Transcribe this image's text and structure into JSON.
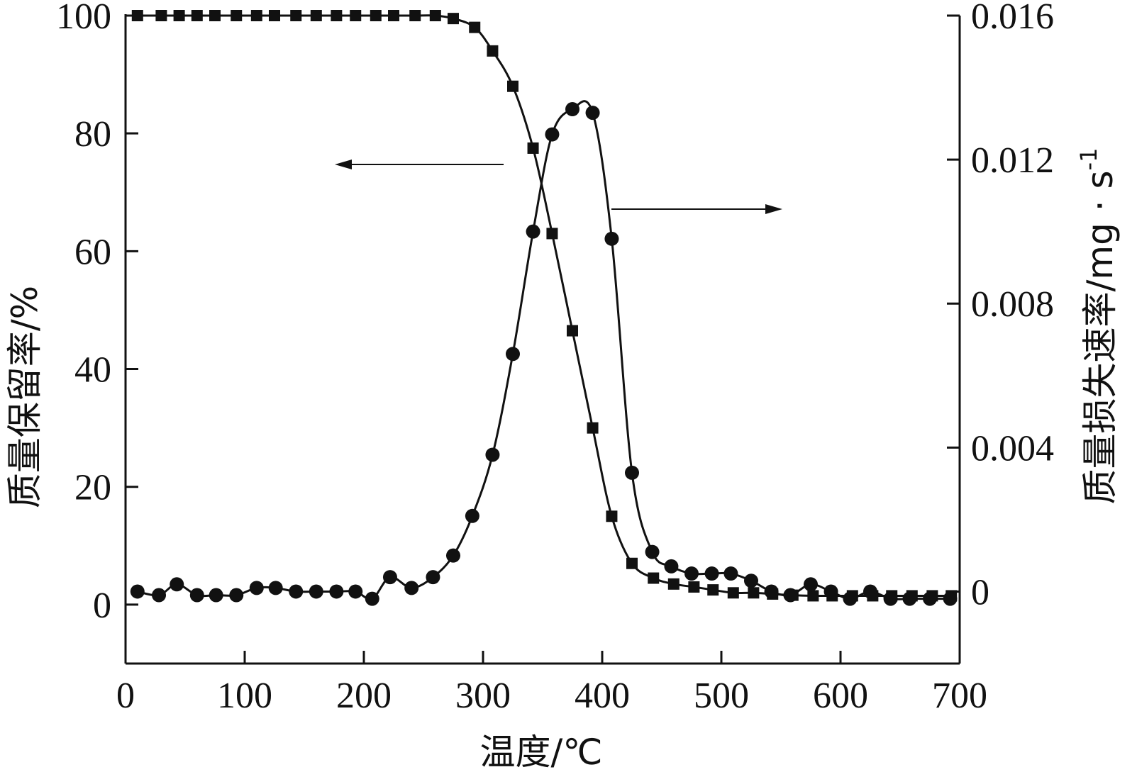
{
  "chart_data": {
    "type": "line",
    "xlabel": "温度/℃",
    "ylabel_left": "质量保留率/%",
    "ylabel_right": "质量损失速率/mg · s",
    "ylabel_right_superscript": "-1",
    "xlim": [
      0,
      700
    ],
    "ylim_left": [
      -10,
      100
    ],
    "ylim_right": [
      -0.002,
      0.016
    ],
    "x_ticks": [
      0,
      100,
      200,
      300,
      400,
      500,
      600,
      700
    ],
    "x_tick_labels": [
      "0",
      "100",
      "200",
      "300",
      "400",
      "500",
      "600",
      "700"
    ],
    "y_left_ticks": [
      0,
      20,
      40,
      60,
      80,
      100
    ],
    "y_left_tick_labels": [
      "0",
      "20",
      "40",
      "60",
      "80",
      "100"
    ],
    "y_right_ticks": [
      0,
      0.004,
      0.008,
      0.012,
      0.016
    ],
    "y_right_tick_labels": [
      "0",
      "0.004",
      "0.008",
      "0.012",
      "0.016"
    ],
    "grid": false,
    "series": [
      {
        "axis": "left",
        "marker": "square",
        "color": "#111111",
        "x": [
          10,
          30,
          45,
          60,
          75,
          93,
          110,
          125,
          143,
          160,
          177,
          193,
          210,
          225,
          243,
          260,
          275,
          293,
          308,
          325,
          342,
          358,
          375,
          392,
          408,
          425,
          443,
          460,
          477,
          493,
          510,
          527,
          543,
          560,
          577,
          593,
          610,
          627,
          643,
          660,
          677,
          693
        ],
        "values": [
          100,
          100,
          100,
          100,
          100,
          100,
          100,
          100,
          100,
          100,
          100,
          100,
          100,
          100,
          100,
          100,
          99.5,
          98,
          94,
          88,
          77.5,
          63,
          46.5,
          30,
          15,
          7,
          4.5,
          3.5,
          3,
          2.5,
          2,
          2,
          1.8,
          1.6,
          1.5,
          1.5,
          1.5,
          1.5,
          1.5,
          1.5,
          1.5,
          1.5
        ]
      },
      {
        "axis": "right",
        "marker": "circle",
        "color": "#111111",
        "x": [
          10,
          28,
          43,
          60,
          76,
          93,
          110,
          126,
          143,
          160,
          177,
          193,
          207,
          222,
          240,
          258,
          275,
          291,
          308,
          325,
          342,
          358,
          375,
          392,
          408,
          425,
          442,
          458,
          475,
          492,
          508,
          525,
          542,
          558,
          575,
          592,
          608,
          625,
          642,
          658,
          675,
          692
        ],
        "values": [
          0.0,
          -0.0001,
          0.0002,
          -0.0001,
          -0.0001,
          -0.0001,
          0.0001,
          0.0001,
          0.0,
          0.0,
          0.0,
          0.0,
          -0.0002,
          0.0004,
          0.0001,
          0.0004,
          0.001,
          0.0021,
          0.0038,
          0.0066,
          0.01,
          0.0127,
          0.0134,
          0.0133,
          0.0098,
          0.0033,
          0.0011,
          0.0007,
          0.0005,
          0.0005,
          0.0005,
          0.0003,
          0.0,
          -0.0001,
          0.0002,
          0.0,
          -0.0002,
          0.0,
          -0.0002,
          -0.0002,
          -0.0002,
          -0.0002
        ]
      }
    ]
  }
}
